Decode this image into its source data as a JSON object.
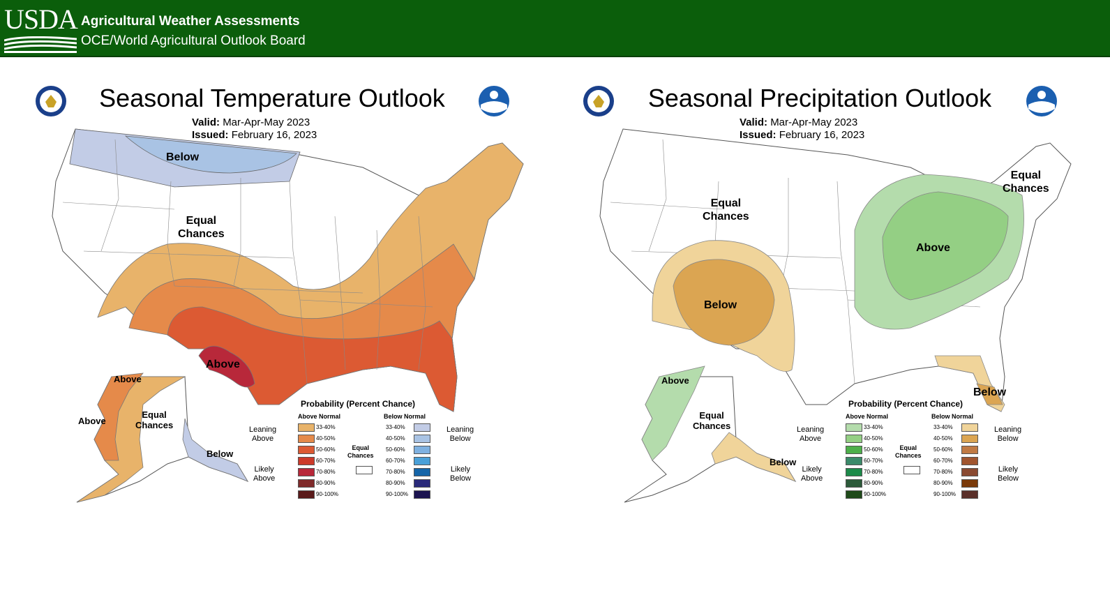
{
  "header": {
    "logo": "USDA",
    "title": "Agricultural Weather Assessments",
    "subtitle": "OCE/World Agricultural Outlook Board"
  },
  "temperature": {
    "title": "Seasonal Temperature Outlook",
    "valid_label": "Valid:",
    "valid_value": "Mar-Apr-May 2023",
    "issued_label": "Issued:",
    "issued_value": "February 16, 2023",
    "labels": {
      "below": "Below",
      "equal_line1": "Equal",
      "equal_line2": "Chances",
      "above_tx": "Above",
      "ak_above1": "Above",
      "ak_above2": "Above",
      "ak_equal1": "Equal",
      "ak_equal2": "Chances",
      "ak_below": "Below"
    }
  },
  "precipitation": {
    "title": "Seasonal Precipitation Outlook",
    "valid_label": "Valid:",
    "valid_value": "Mar-Apr-May 2023",
    "issued_label": "Issued:",
    "issued_value": "February 16, 2023",
    "labels": {
      "equal_w1": "Equal",
      "equal_w2": "Chances",
      "below_sw": "Below",
      "above_ov": "Above",
      "equal_ne1": "Equal",
      "equal_ne2": "Chances",
      "below_fl": "Below",
      "ak_above": "Above",
      "ak_equal1": "Equal",
      "ak_equal2": "Chances",
      "ak_below": "Below"
    }
  },
  "legend": {
    "title": "Probability (Percent Chance)",
    "above_head": "Above Normal",
    "below_head": "Below Normal",
    "equal_line1": "Equal",
    "equal_line2": "Chances",
    "leaning_above1": "Leaning",
    "leaning_above2": "Above",
    "likely_above1": "Likely",
    "likely_above2": "Above",
    "leaning_below1": "Leaning",
    "leaning_below2": "Below",
    "likely_below1": "Likely",
    "likely_below2": "Below",
    "ranges": [
      "33-40%",
      "40-50%",
      "50-60%",
      "60-70%",
      "70-80%",
      "80-90%",
      "90-100%"
    ]
  },
  "colors": {
    "temp_above": [
      "#e8b36a",
      "#e58a4a",
      "#dc5a33",
      "#cc3a2a",
      "#b8283a",
      "#7f2a2a",
      "#5a1a1a"
    ],
    "temp_below": [
      "#c2cce6",
      "#a9c3e4",
      "#7fb1e0",
      "#4aa0d8",
      "#1565a8",
      "#2a2a7a",
      "#1c1450"
    ],
    "precip_above": [
      "#b4dcac",
      "#94cf84",
      "#4daf4a",
      "#3b8a6a",
      "#1d8a4a",
      "#2c5a3a",
      "#1f4a1a"
    ],
    "precip_below": [
      "#f0d49a",
      "#dba552",
      "#c07a44",
      "#a0552f",
      "#8a4a32",
      "#7a3a0a",
      "#5a302a"
    ]
  }
}
